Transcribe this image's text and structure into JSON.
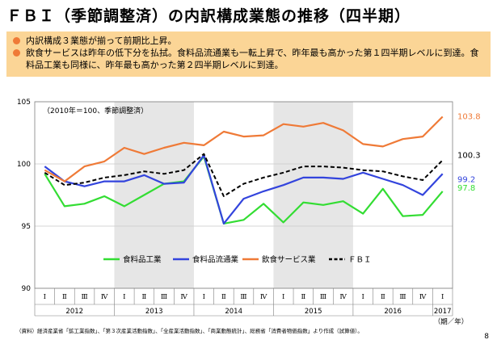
{
  "page": {
    "title": "ＦＢＩ（季節調整済）の内訳構成業態の推移（四半期）",
    "notes": [
      "内訳構成３業態が揃って前期比上昇。",
      "飲食サービスは昨年の低下分を払拭。食料品流通業も一転上昇で、昨年最も高かった第１四半期レベルに到達。食料品工業も同様に、昨年最も高かった第２四半期レベルに到達。"
    ],
    "source": "（資料）経済産業省「鉱工業指数」、「第３次産業活動指数」、「全産業活動指数」、「商業動態統計」、総務省「消費者物価指数」より作成（試算値）。",
    "page_number": "8"
  },
  "chart_data": {
    "type": "line",
    "annotation": "（2010年＝100、季節調整済）",
    "unit_label": "（期／年）",
    "ylim": [
      90,
      105
    ],
    "yticks": [
      90,
      95,
      100,
      105
    ],
    "quarters": [
      "Ⅰ",
      "Ⅱ",
      "Ⅲ",
      "Ⅳ",
      "Ⅰ",
      "Ⅱ",
      "Ⅲ",
      "Ⅳ",
      "Ⅰ",
      "Ⅱ",
      "Ⅲ",
      "Ⅳ",
      "Ⅰ",
      "Ⅱ",
      "Ⅲ",
      "Ⅳ",
      "Ⅰ",
      "Ⅱ",
      "Ⅲ",
      "Ⅳ",
      "Ⅰ"
    ],
    "years": [
      {
        "label": "2012",
        "start": 0,
        "count": 4
      },
      {
        "label": "2013",
        "start": 4,
        "count": 4
      },
      {
        "label": "2014",
        "start": 8,
        "count": 4
      },
      {
        "label": "2015",
        "start": 12,
        "count": 4
      },
      {
        "label": "2016",
        "start": 16,
        "count": 4
      },
      {
        "label": "2017",
        "start": 20,
        "count": 1
      }
    ],
    "shaded_years": [
      1,
      3
    ],
    "grid": true,
    "legend_position": "bottom",
    "series": [
      {
        "name": "食料品工業",
        "color": "#33dd33",
        "dashed": false,
        "end_label": "97.8",
        "values": [
          99.2,
          96.6,
          96.8,
          97.4,
          96.6,
          97.5,
          98.4,
          98.6,
          100.6,
          95.2,
          95.5,
          96.8,
          95.3,
          96.9,
          96.7,
          97.0,
          96.0,
          98.0,
          95.8,
          95.9,
          97.8
        ]
      },
      {
        "name": "食料品流通業",
        "color": "#3344dd",
        "dashed": false,
        "end_label": "99.2",
        "values": [
          99.8,
          98.6,
          98.2,
          98.6,
          98.6,
          99.1,
          98.4,
          98.5,
          100.7,
          95.2,
          97.2,
          97.8,
          98.3,
          98.9,
          98.9,
          98.8,
          99.3,
          98.8,
          98.3,
          97.5,
          99.2
        ]
      },
      {
        "name": "飲食サービス業",
        "color": "#ef7a37",
        "dashed": false,
        "end_label": "103.8",
        "values": [
          99.5,
          98.6,
          99.8,
          100.2,
          101.3,
          100.8,
          101.3,
          101.7,
          101.5,
          102.6,
          102.2,
          102.3,
          103.2,
          103.0,
          103.3,
          102.7,
          101.6,
          101.4,
          102.0,
          102.2,
          103.8
        ]
      },
      {
        "name": "ＦＢＩ",
        "color": "#000000",
        "dashed": true,
        "end_label": "100.3",
        "values": [
          99.3,
          98.3,
          98.5,
          98.9,
          99.1,
          99.4,
          99.2,
          99.5,
          100.8,
          97.4,
          98.4,
          98.9,
          99.3,
          99.8,
          99.8,
          99.7,
          99.5,
          99.4,
          99.0,
          98.7,
          100.3
        ]
      }
    ]
  }
}
